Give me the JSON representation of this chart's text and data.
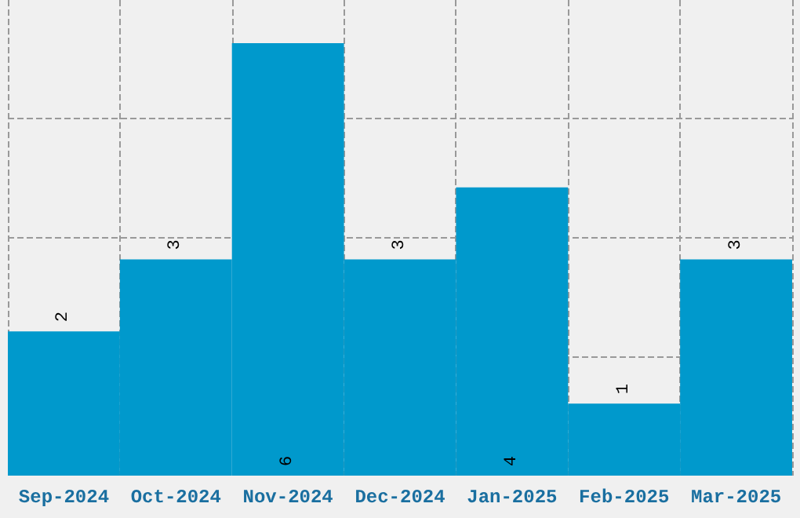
{
  "chart_data": {
    "type": "bar",
    "categories": [
      "Sep-2024",
      "Oct-2024",
      "Nov-2024",
      "Dec-2024",
      "Jan-2025",
      "Feb-2025",
      "Mar-2025"
    ],
    "values": [
      2,
      3,
      6,
      3,
      4,
      1,
      3
    ],
    "color": "#0099cc",
    "data_labels": true,
    "grid": true,
    "ylim": [
      0,
      6.6
    ],
    "yticks": [
      {
        "value": 1.65,
        "label": null
      },
      {
        "value": 3.3,
        "label": null
      },
      {
        "value": 4.95,
        "label": null
      }
    ],
    "tick_labels": "x"
  }
}
